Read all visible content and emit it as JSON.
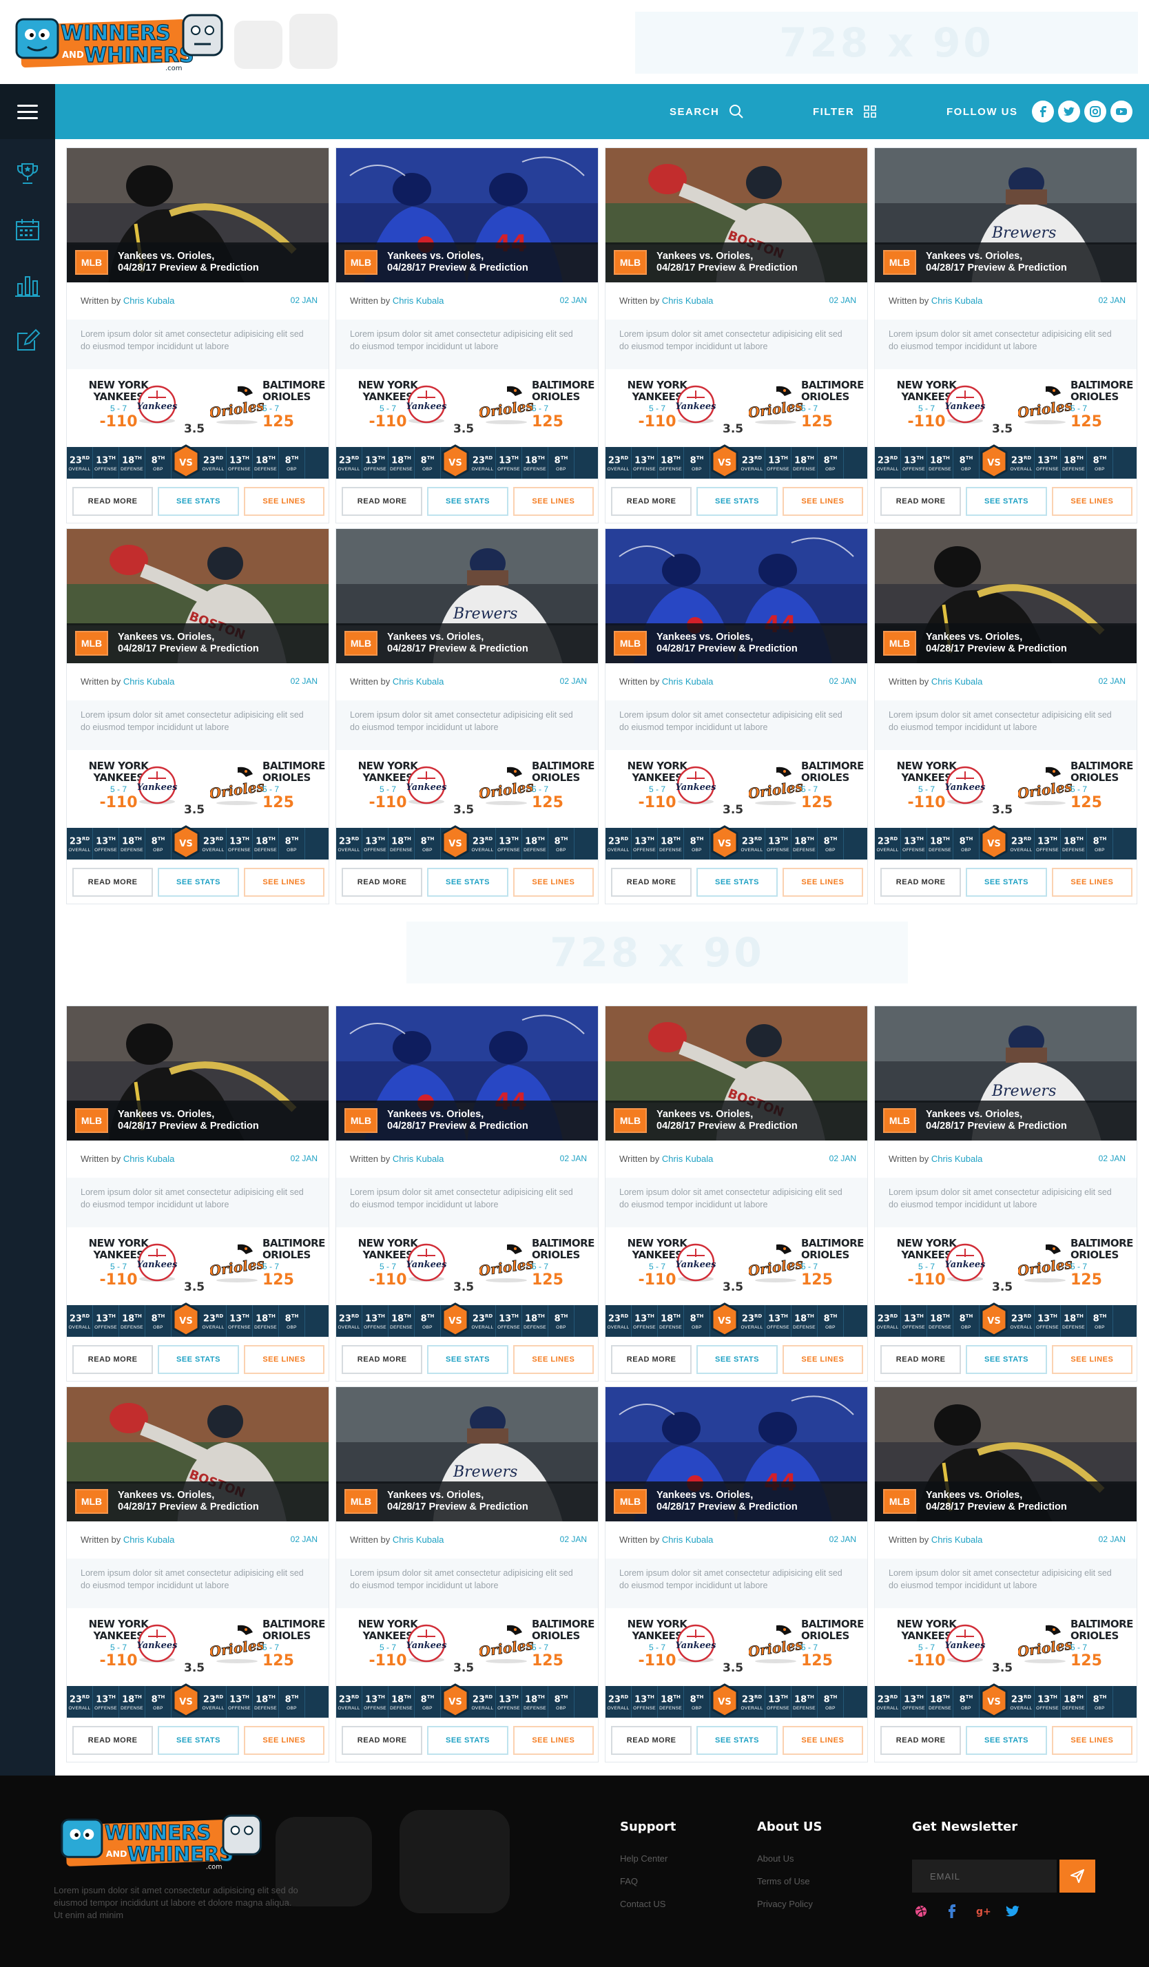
{
  "header": {
    "logo_line1": "WINNERS",
    "logo_and": "AND",
    "logo_line2": "WHINERS",
    "logo_com": ".com",
    "ad_label": "728 x 90"
  },
  "nav": {
    "search_label": "SEARCH",
    "filter_label": "FILTER",
    "follow_label": "FOLLOW US"
  },
  "card_template": {
    "league": "MLB",
    "title_line1": "Yankees vs. Orioles,",
    "title_line2": "04/28/17  Preview & Prediction",
    "written_by": "Written by ",
    "author": "Chris Kubala",
    "date": "02 JAN",
    "excerpt": "Lorem ipsum dolor sit amet consectetur adipisicing elit sed do eiusmod tempor incididunt ut labore",
    "home_team_line1": "NEW YORK",
    "home_team_line2": "YANKEES",
    "home_record": "5 - 7",
    "home_odds": "-110",
    "away_team_line1": "BALTIMORE",
    "away_team_line2": "ORIOLES",
    "away_record": "5 - 7",
    "away_odds": "125",
    "spread": "3.5",
    "vs": "VS",
    "stats": [
      {
        "num": "23",
        "sup": "RD",
        "label": "OVERALL"
      },
      {
        "num": "13",
        "sup": "TH",
        "label": "OFFENSE"
      },
      {
        "num": "18",
        "sup": "TH",
        "label": "DEFENSE"
      },
      {
        "num": "8",
        "sup": "TH",
        "label": "OBP"
      }
    ],
    "btn_read": "READ MORE",
    "btn_stats": "SEE STATS",
    "btn_lines": "SEE LINES"
  },
  "colors": {
    "accent_blue": "#1ea1c4",
    "accent_orange": "#f47c20",
    "sidebar": "#14212e",
    "stats_bar": "#173a52"
  },
  "card_images": [
    "pirates-batter",
    "cubs-celebration",
    "redsox-pitcher",
    "brewers-player",
    "redsox-pitcher",
    "brewers-player",
    "cubs-celebration",
    "pirates-batter",
    "pirates-batter",
    "cubs-celebration",
    "redsox-pitcher",
    "brewers-player",
    "redsox-pitcher",
    "brewers-player",
    "cubs-celebration",
    "pirates-batter"
  ],
  "footer": {
    "about_text": "Lorem ipsum dolor sit amet consectetur adipisicing elit sed do eiusmod tempor incididunt ut labore et dolore magna aliqua. Ut enim ad minim",
    "support_heading": "Support",
    "support_links": [
      "Help Center",
      "FAQ",
      "Contact US"
    ],
    "about_heading": "About US",
    "about_links": [
      "About Us",
      "Terms of Use",
      "Privacy Policy"
    ],
    "newsletter_heading": "Get Newsletter",
    "email_placeholder": "EMAIL"
  }
}
